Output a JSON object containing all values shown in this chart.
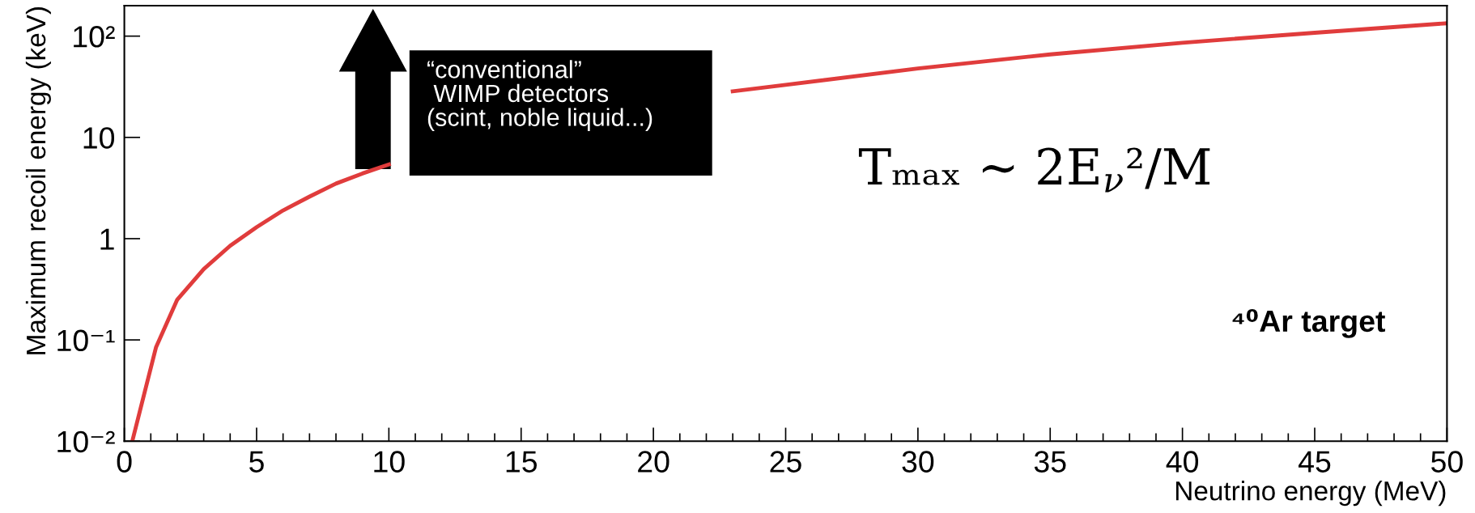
{
  "chart_data": {
    "type": "line",
    "xlabel": "Neutrino energy (MeV)",
    "ylabel": "Maximum recoil energy (keV)",
    "x": [
      0.3,
      1.2,
      2,
      3,
      4,
      5,
      6,
      7,
      8,
      9,
      10,
      12,
      15,
      20,
      23,
      25,
      30,
      35,
      40,
      45,
      50
    ],
    "series": [
      {
        "color": "#e03c3c",
        "values": [
          0.01,
          0.085,
          0.25,
          0.5,
          0.85,
          1.3,
          1.9,
          2.6,
          3.5,
          4.4,
          5.4,
          null,
          null,
          null,
          28.5,
          33,
          48,
          66,
          86,
          108,
          134
        ]
      }
    ],
    "log": "y",
    "xlim": [
      0,
      50
    ],
    "ylim": [
      0.01,
      200
    ],
    "xticks": [
      0,
      5,
      10,
      15,
      20,
      25,
      30,
      35,
      40,
      45,
      50
    ],
    "yticks": [
      {
        "value": 0.01,
        "label": "10⁻²"
      },
      {
        "value": 0.1,
        "label": "10⁻¹"
      },
      1,
      10,
      {
        "value": 100,
        "label": "10²"
      }
    ],
    "grid": false,
    "legend": false,
    "marker": "none",
    "line_style": "solid",
    "annotations": [
      "“conventional”\n WIMP detectors\n(scint, noble liquid...)",
      "Tₘₐₓ ∼ 2E$_{ν}$²/M",
      "⁴⁰Ar target"
    ]
  }
}
